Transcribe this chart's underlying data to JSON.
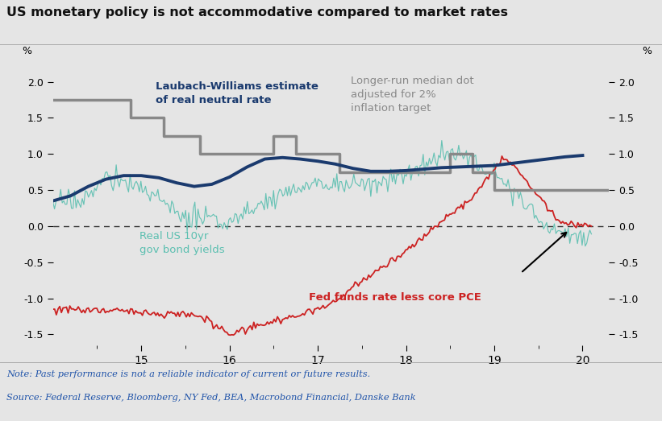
{
  "title": "US monetary policy is not accommodative compared to market rates",
  "note": "Note: Past performance is not a reliable indicator of current or future results.",
  "source": "Source: Federal Reserve, Bloomberg, NY Fed, BEA, Macrobond Financial, Danske Bank",
  "ylim": [
    -1.65,
    2.2
  ],
  "yticks": [
    -1.5,
    -1.0,
    -0.5,
    0.0,
    0.5,
    1.0,
    1.5,
    2.0
  ],
  "xlim_start": 2014.0,
  "xlim_end": 2020.3,
  "xtick_positions": [
    2015,
    2016,
    2017,
    2018,
    2019,
    2020
  ],
  "xtick_labels": [
    "15",
    "16",
    "17",
    "18",
    "19",
    "20"
  ],
  "background_color": "#e5e5e5",
  "plot_bg_color": "#e5e5e5",
  "colors": {
    "lw_line": "#1a3a6e",
    "gray_step": "#888888",
    "teal_line": "#5bbfb0",
    "red_line": "#cc2222"
  },
  "lw_x": [
    2014.0,
    2014.2,
    2014.4,
    2014.6,
    2014.8,
    2015.0,
    2015.2,
    2015.4,
    2015.6,
    2015.8,
    2016.0,
    2016.2,
    2016.4,
    2016.6,
    2016.8,
    2017.0,
    2017.2,
    2017.4,
    2017.6,
    2017.8,
    2018.0,
    2018.2,
    2018.4,
    2018.6,
    2018.8,
    2019.0,
    2019.2,
    2019.4,
    2019.6,
    2019.8,
    2020.0
  ],
  "lw_y": [
    0.35,
    0.42,
    0.55,
    0.65,
    0.7,
    0.7,
    0.67,
    0.6,
    0.55,
    0.58,
    0.68,
    0.82,
    0.93,
    0.95,
    0.93,
    0.9,
    0.86,
    0.8,
    0.76,
    0.76,
    0.77,
    0.79,
    0.81,
    0.82,
    0.83,
    0.84,
    0.87,
    0.9,
    0.93,
    0.96,
    0.98
  ],
  "gray_step_x": [
    2014.0,
    2014.88,
    2015.25,
    2015.67,
    2016.5,
    2016.75,
    2017.25,
    2018.5,
    2018.75,
    2019.0,
    2020.3
  ],
  "gray_step_y": [
    1.75,
    1.5,
    1.25,
    1.0,
    1.25,
    1.0,
    0.75,
    1.0,
    0.75,
    0.5,
    0.5
  ],
  "ylabel_left": "%",
  "ylabel_right": "%"
}
